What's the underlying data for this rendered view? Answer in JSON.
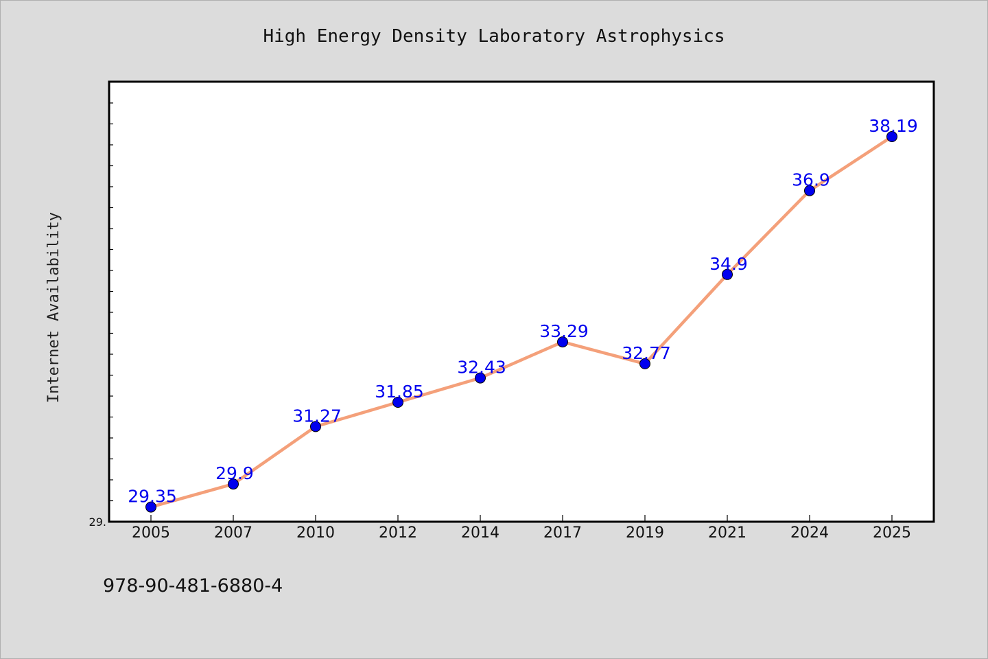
{
  "chart_data": {
    "type": "line",
    "title": "High Energy Density Laboratory Astrophysics",
    "ylabel": "Internet Availability",
    "xlabel": "",
    "categories": [
      "2005",
      "2007",
      "2010",
      "2012",
      "2014",
      "2017",
      "2019",
      "2021",
      "2024",
      "2025"
    ],
    "series": [
      {
        "values": [
          29.35,
          29.9,
          31.27,
          31.85,
          32.43,
          33.29,
          32.77,
          34.9,
          36.9,
          38.19
        ],
        "data_labels": [
          "29.35",
          "29.9",
          "31.27",
          "31.85",
          "32.43",
          "33.29",
          "32.77",
          "34.9",
          "36.9",
          "38.19"
        ]
      }
    ],
    "ylim": [
      29.0,
      39.5
    ],
    "ytick_label": "29.",
    "grid": false,
    "legend": "none",
    "colors": {
      "line": "#f4a07a",
      "marker": "#0000ee",
      "label": "#0000ee",
      "plot_bg": "#ffffff",
      "page_bg": "#dcdcdc"
    }
  },
  "footer": {
    "isbn": "978-90-481-6880-4"
  }
}
